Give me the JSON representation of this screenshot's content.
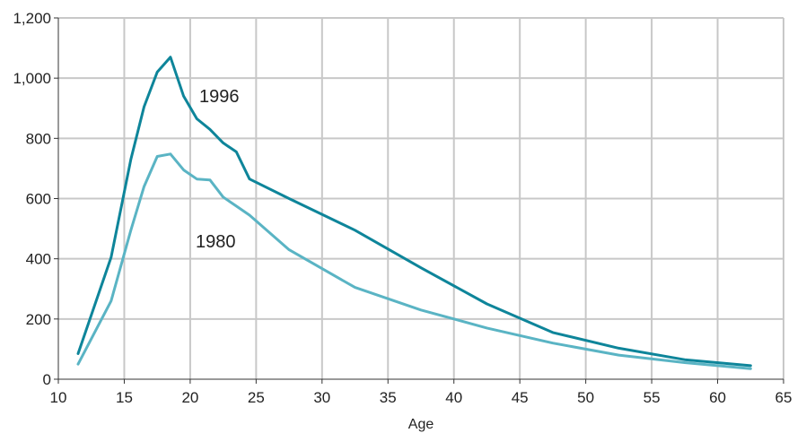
{
  "chart_data": {
    "type": "line",
    "title": "",
    "xlabel": "Age",
    "ylabel": "",
    "xlim": [
      10,
      65
    ],
    "ylim": [
      0,
      1200
    ],
    "x_ticks": [
      10,
      15,
      20,
      25,
      30,
      35,
      40,
      45,
      50,
      55,
      60,
      65
    ],
    "y_ticks": [
      0,
      200,
      400,
      600,
      800,
      1000,
      1200
    ],
    "y_tick_labels": [
      "0",
      "200",
      "400",
      "600",
      "800",
      "1,000",
      "1,200"
    ],
    "grid": true,
    "legend": "inline labels",
    "series": [
      {
        "name": "1996",
        "color": "#0e859a",
        "points": [
          [
            11.5,
            85
          ],
          [
            14,
            405
          ],
          [
            15.5,
            730
          ],
          [
            16.5,
            905
          ],
          [
            17.5,
            1020
          ],
          [
            18.5,
            1070
          ],
          [
            19.5,
            940
          ],
          [
            20.5,
            865
          ],
          [
            21.5,
            830
          ],
          [
            22.5,
            785
          ],
          [
            23.5,
            755
          ],
          [
            24.5,
            665
          ],
          [
            27.5,
            600
          ],
          [
            32.5,
            495
          ],
          [
            37.5,
            370
          ],
          [
            42.5,
            250
          ],
          [
            47.5,
            155
          ],
          [
            52.5,
            103
          ],
          [
            57.5,
            65
          ],
          [
            62.5,
            45
          ]
        ]
      },
      {
        "name": "1980",
        "color": "#5ab4c4",
        "points": [
          [
            11.5,
            50
          ],
          [
            14,
            260
          ],
          [
            15.5,
            495
          ],
          [
            16.5,
            640
          ],
          [
            17.5,
            740
          ],
          [
            18.5,
            748
          ],
          [
            19.5,
            695
          ],
          [
            20.5,
            665
          ],
          [
            21.5,
            662
          ],
          [
            22.5,
            605
          ],
          [
            23.5,
            575
          ],
          [
            24.5,
            545
          ],
          [
            27.5,
            430
          ],
          [
            32.5,
            305
          ],
          [
            37.5,
            230
          ],
          [
            42.5,
            170
          ],
          [
            47.5,
            120
          ],
          [
            52.5,
            80
          ],
          [
            57.5,
            55
          ],
          [
            62.5,
            35
          ]
        ]
      }
    ]
  }
}
